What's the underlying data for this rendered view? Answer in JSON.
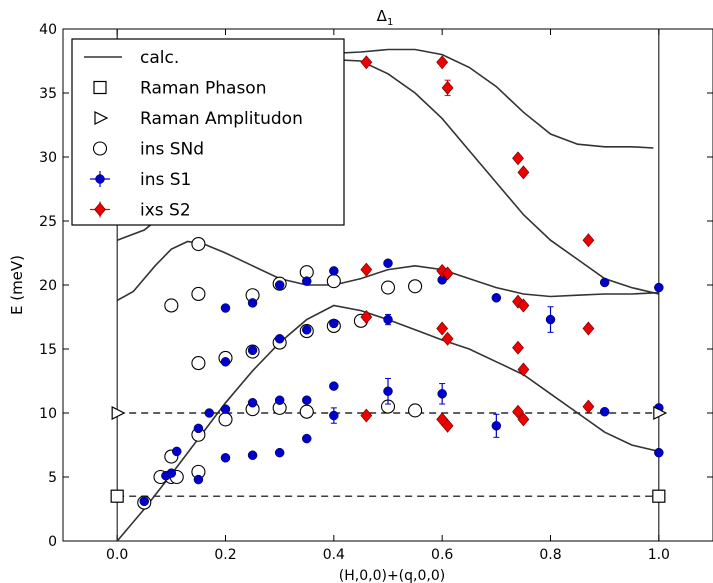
{
  "chart_data": {
    "type": "scatter",
    "title": "Δ",
    "title_subscript": "1",
    "xlabel": "(H,0,0)+(q,0,0)",
    "ylabel": "E (meV)",
    "xlim": [
      -0.1,
      1.1
    ],
    "ylim": [
      0,
      40
    ],
    "x_ticks": [
      "0.0",
      "0.2",
      "0.4",
      "0.6",
      "0.8",
      "1.0"
    ],
    "y_ticks": [
      "0",
      "5",
      "10",
      "15",
      "20",
      "25",
      "30",
      "35",
      "40"
    ],
    "grid": false,
    "legend_position": "top-left",
    "vlines": [
      0,
      1
    ],
    "hlines": [
      3.5,
      10
    ],
    "legend": [
      "calc.",
      "Raman Phason",
      "Raman Amplitudon",
      "ins SNd",
      "ins S1",
      "ixs S2"
    ],
    "series": [
      {
        "name": "calc.",
        "kind": "line",
        "color": "#333333",
        "curves": [
          [
            [
              0,
              0
            ],
            [
              0.05,
              2.5
            ],
            [
              0.1,
              5.2
            ],
            [
              0.15,
              8
            ],
            [
              0.2,
              10.8
            ],
            [
              0.25,
              13.3
            ],
            [
              0.3,
              15.5
            ],
            [
              0.35,
              17.3
            ],
            [
              0.4,
              18.4
            ],
            [
              0.45,
              18
            ],
            [
              0.5,
              17.3
            ],
            [
              0.55,
              16.5
            ],
            [
              0.6,
              15.7
            ],
            [
              0.65,
              15
            ],
            [
              0.7,
              14
            ],
            [
              0.75,
              13
            ],
            [
              0.8,
              11.5
            ],
            [
              0.85,
              10
            ],
            [
              0.9,
              8.5
            ],
            [
              0.95,
              7.5
            ],
            [
              1.0,
              7
            ]
          ],
          [
            [
              0,
              18.8
            ],
            [
              0.03,
              19.5
            ],
            [
              0.07,
              21.5
            ],
            [
              0.1,
              22.8
            ],
            [
              0.13,
              23.4
            ],
            [
              0.16,
              23.2
            ],
            [
              0.2,
              22.5
            ],
            [
              0.25,
              21.5
            ],
            [
              0.3,
              20.5
            ],
            [
              0.35,
              20
            ],
            [
              0.4,
              20
            ],
            [
              0.45,
              20.5
            ],
            [
              0.5,
              21.2
            ],
            [
              0.55,
              21.5
            ],
            [
              0.6,
              21.2
            ],
            [
              0.65,
              20.5
            ],
            [
              0.7,
              19.8
            ],
            [
              0.75,
              19.3
            ],
            [
              0.8,
              19.1
            ],
            [
              0.85,
              19.2
            ],
            [
              0.9,
              19.3
            ],
            [
              0.95,
              19.3
            ],
            [
              1.0,
              19.4
            ]
          ],
          [
            [
              0,
              23.5
            ],
            [
              0.05,
              24.3
            ],
            [
              0.1,
              26
            ]
          ],
          [
            [
              0.35,
              38
            ],
            [
              0.4,
              38.1
            ],
            [
              0.45,
              38.2
            ],
            [
              0.5,
              38.4
            ],
            [
              0.55,
              38.4
            ],
            [
              0.6,
              38
            ],
            [
              0.65,
              37
            ],
            [
              0.7,
              35.5
            ],
            [
              0.75,
              33.5
            ],
            [
              0.8,
              31.8
            ],
            [
              0.85,
              31
            ],
            [
              0.9,
              30.8
            ],
            [
              0.95,
              30.8
            ],
            [
              0.99,
              30.7
            ]
          ],
          [
            [
              0.28,
              36.5
            ],
            [
              0.35,
              37.5
            ],
            [
              0.4,
              37.6
            ],
            [
              0.45,
              37.5
            ],
            [
              0.5,
              36.5
            ],
            [
              0.55,
              35
            ],
            [
              0.6,
              33
            ],
            [
              0.65,
              30.5
            ],
            [
              0.7,
              28
            ],
            [
              0.75,
              25.5
            ],
            [
              0.8,
              23.5
            ],
            [
              0.85,
              22
            ],
            [
              0.9,
              20.5
            ],
            [
              0.95,
              19.8
            ],
            [
              1.0,
              19.3
            ]
          ]
        ]
      },
      {
        "name": "Raman Phason",
        "kind": "marker",
        "marker": "square",
        "color": "#000000",
        "points": [
          [
            0,
            3.5
          ],
          [
            1.0,
            3.5
          ]
        ]
      },
      {
        "name": "Raman Amplitudon",
        "kind": "marker",
        "marker": "triangle-right",
        "color": "#000000",
        "points": [
          [
            0,
            10
          ],
          [
            1.0,
            10
          ]
        ]
      },
      {
        "name": "ins SNd",
        "kind": "marker",
        "marker": "circle-open",
        "color": "#000000",
        "points": [
          [
            0.05,
            3
          ],
          [
            0.08,
            5
          ],
          [
            0.1,
            5
          ],
          [
            0.11,
            5
          ],
          [
            0.1,
            6.6
          ],
          [
            0.15,
            5.4
          ],
          [
            0.15,
            8.3
          ],
          [
            0.15,
            13.9
          ],
          [
            0.15,
            19.3
          ],
          [
            0.15,
            23.2
          ],
          [
            0.1,
            18.4
          ],
          [
            0.2,
            9.5
          ],
          [
            0.2,
            14.3
          ],
          [
            0.25,
            10.3
          ],
          [
            0.25,
            14.8
          ],
          [
            0.25,
            19.2
          ],
          [
            0.3,
            10.4
          ],
          [
            0.3,
            15.5
          ],
          [
            0.3,
            20.1
          ],
          [
            0.35,
            10.1
          ],
          [
            0.35,
            16.4
          ],
          [
            0.35,
            21
          ],
          [
            0.4,
            16.8
          ],
          [
            0.4,
            20.3
          ],
          [
            0.45,
            17.2
          ],
          [
            0.5,
            10.5
          ],
          [
            0.5,
            19.8
          ],
          [
            0.55,
            10.2
          ],
          [
            0.55,
            19.9
          ]
        ]
      },
      {
        "name": "ins S1",
        "kind": "marker",
        "marker": "circle-filled",
        "color": "#0000cc",
        "points": [
          {
            "x": 0.05,
            "y": 3.1
          },
          {
            "x": 0.09,
            "y": 5.1
          },
          {
            "x": 0.1,
            "y": 5.3
          },
          {
            "x": 0.11,
            "y": 7
          },
          {
            "x": 0.15,
            "y": 4.8
          },
          {
            "x": 0.15,
            "y": 8.8
          },
          {
            "x": 0.17,
            "y": 10
          },
          {
            "x": 0.2,
            "y": 6.5
          },
          {
            "x": 0.2,
            "y": 10.3
          },
          {
            "x": 0.2,
            "y": 14
          },
          {
            "x": 0.2,
            "y": 18.2
          },
          {
            "x": 0.25,
            "y": 6.7
          },
          {
            "x": 0.25,
            "y": 10.8
          },
          {
            "x": 0.25,
            "y": 14.9
          },
          {
            "x": 0.25,
            "y": 18.6
          },
          {
            "x": 0.3,
            "y": 6.9
          },
          {
            "x": 0.3,
            "y": 11
          },
          {
            "x": 0.3,
            "y": 15.8
          },
          {
            "x": 0.3,
            "y": 20
          },
          {
            "x": 0.35,
            "y": 8
          },
          {
            "x": 0.35,
            "y": 11
          },
          {
            "x": 0.35,
            "y": 16.5
          },
          {
            "x": 0.35,
            "y": 20.3
          },
          {
            "x": 0.4,
            "y": 9.8,
            "err": 0.6
          },
          {
            "x": 0.4,
            "y": 12.1
          },
          {
            "x": 0.4,
            "y": 17
          },
          {
            "x": 0.4,
            "y": 21.1
          },
          {
            "x": 0.5,
            "y": 11.7,
            "err": 1
          },
          {
            "x": 0.5,
            "y": 17.3,
            "err": 0.4
          },
          {
            "x": 0.5,
            "y": 21.7
          },
          {
            "x": 0.6,
            "y": 11.5,
            "err": 0.8
          },
          {
            "x": 0.6,
            "y": 20.4
          },
          {
            "x": 0.7,
            "y": 9,
            "err": 0.9
          },
          {
            "x": 0.7,
            "y": 19
          },
          {
            "x": 0.8,
            "y": 17.3,
            "err": 1
          },
          {
            "x": 0.9,
            "y": 10.1
          },
          {
            "x": 0.9,
            "y": 20.2
          },
          {
            "x": 1.0,
            "y": 6.9
          },
          {
            "x": 1.0,
            "y": 10.4
          },
          {
            "x": 1.0,
            "y": 19.8
          }
        ]
      },
      {
        "name": "ixs S2",
        "kind": "marker",
        "marker": "diamond",
        "color": "#ee0000",
        "points": [
          {
            "x": 0.46,
            "y": 9.8
          },
          {
            "x": 0.46,
            "y": 17.5
          },
          {
            "x": 0.46,
            "y": 21.2
          },
          {
            "x": 0.46,
            "y": 37.4
          },
          {
            "x": 0.6,
            "y": 9.5
          },
          {
            "x": 0.6,
            "y": 16.6
          },
          {
            "x": 0.6,
            "y": 21.1
          },
          {
            "x": 0.6,
            "y": 37.4
          },
          {
            "x": 0.61,
            "y": 9
          },
          {
            "x": 0.61,
            "y": 15.8
          },
          {
            "x": 0.61,
            "y": 20.9
          },
          {
            "x": 0.61,
            "y": 35.4,
            "err": 0.6
          },
          {
            "x": 0.74,
            "y": 10.1
          },
          {
            "x": 0.74,
            "y": 15.1
          },
          {
            "x": 0.74,
            "y": 18.7
          },
          {
            "x": 0.74,
            "y": 29.9
          },
          {
            "x": 0.75,
            "y": 9.5
          },
          {
            "x": 0.75,
            "y": 13.4
          },
          {
            "x": 0.75,
            "y": 18.4
          },
          {
            "x": 0.75,
            "y": 28.8
          },
          {
            "x": 0.87,
            "y": 10.5
          },
          {
            "x": 0.87,
            "y": 16.6
          },
          {
            "x": 0.87,
            "y": 23.5
          }
        ]
      }
    ]
  }
}
